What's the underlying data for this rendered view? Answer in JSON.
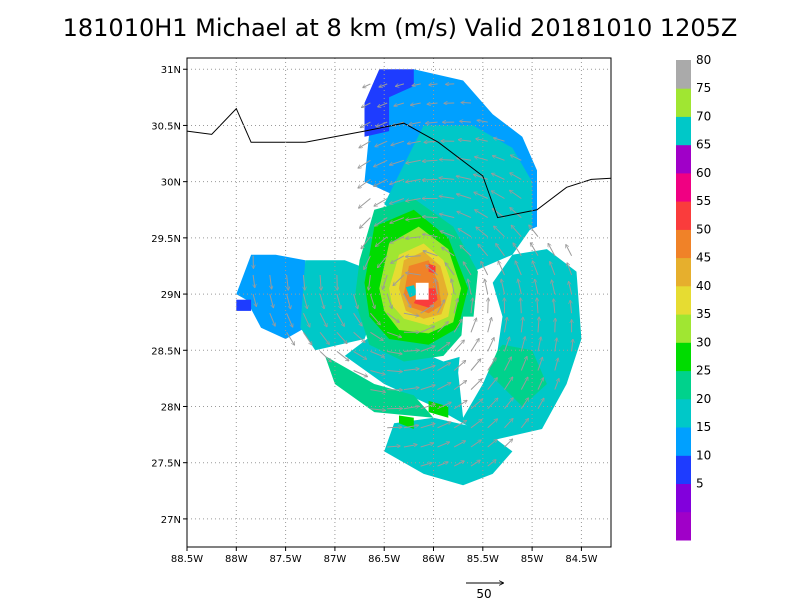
{
  "title": "181010H1 Michael at 8 km (m/s) Valid 20181010 1205Z",
  "colors": {
    "coast": "#000000",
    "grid": "#9a9a9a",
    "vector": "#9b9b9b"
  },
  "chart_data": {
    "type": "heatmap",
    "title": "181010H1 Michael at 8 km (m/s) Valid 20181010 1205Z",
    "xlabel": "",
    "ylabel": "",
    "xlim": [
      -88.5,
      -84.2
    ],
    "ylim": [
      26.75,
      31.1
    ],
    "x_ticks": [
      {
        "value": -88.5,
        "label": "88.5W"
      },
      {
        "value": -88,
        "label": "88W"
      },
      {
        "value": -87.5,
        "label": "87.5W"
      },
      {
        "value": -87,
        "label": "87W"
      },
      {
        "value": -86.5,
        "label": "86.5W"
      },
      {
        "value": -86,
        "label": "86W"
      },
      {
        "value": -85.5,
        "label": "85.5W"
      },
      {
        "value": -85,
        "label": "85W"
      },
      {
        "value": -84.5,
        "label": "84.5W"
      }
    ],
    "y_ticks": [
      {
        "value": 27,
        "label": "27N"
      },
      {
        "value": 27.5,
        "label": "27.5N"
      },
      {
        "value": 28,
        "label": "28N"
      },
      {
        "value": 28.5,
        "label": "28.5N"
      },
      {
        "value": 29,
        "label": "29N"
      },
      {
        "value": 29.5,
        "label": "29.5N"
      },
      {
        "value": 30,
        "label": "30N"
      },
      {
        "value": 30.5,
        "label": "30.5N"
      },
      {
        "value": 31,
        "label": "31N"
      }
    ],
    "grid": true,
    "storm_center": {
      "lon": -86.2,
      "lat": 29.02
    },
    "colorbar": {
      "placement": "right",
      "levels": [
        {
          "label": "",
          "color": "#a000c8"
        },
        {
          "label": "5",
          "color": "#8200dc"
        },
        {
          "label": "10",
          "color": "#1e3cff"
        },
        {
          "label": "15",
          "color": "#00a0ff"
        },
        {
          "label": "20",
          "color": "#00c8c8"
        },
        {
          "label": "25",
          "color": "#00d28c"
        },
        {
          "label": "30",
          "color": "#00dc00"
        },
        {
          "label": "35",
          "color": "#a0e632"
        },
        {
          "label": "40",
          "color": "#e6dc32"
        },
        {
          "label": "45",
          "color": "#e6af2d"
        },
        {
          "label": "50",
          "color": "#f08228"
        },
        {
          "label": "55",
          "color": "#fa3c3c"
        },
        {
          "label": "60",
          "color": "#f00082"
        },
        {
          "label": "65",
          "color": "#a000c8"
        },
        {
          "label": "70",
          "color": "#00c8c8"
        },
        {
          "label": "75",
          "color": "#a0e632"
        },
        {
          "label": "80",
          "color": "#aaaaaa"
        }
      ]
    },
    "wind_regions": [
      {
        "level": 20,
        "color": "#00a0ff",
        "polygon": [
          [
            -86.7,
            30.0
          ],
          [
            -86.6,
            30.9
          ],
          [
            -86.2,
            31.0
          ],
          [
            -85.7,
            30.9
          ],
          [
            -85.4,
            30.6
          ],
          [
            -85.1,
            30.4
          ],
          [
            -84.95,
            30.1
          ],
          [
            -84.95,
            29.6
          ],
          [
            -85.2,
            29.5
          ],
          [
            -85.7,
            29.6
          ],
          [
            -86.2,
            29.8
          ]
        ]
      },
      {
        "level": 20,
        "color": "#00a0ff",
        "polygon": [
          [
            -87.85,
            29.35
          ],
          [
            -87.6,
            29.35
          ],
          [
            -87.3,
            29.3
          ],
          [
            -87.3,
            28.7
          ],
          [
            -87.5,
            28.6
          ],
          [
            -87.75,
            28.7
          ],
          [
            -87.9,
            28.95
          ],
          [
            -88.0,
            29.0
          ]
        ]
      },
      {
        "level": 15,
        "color": "#1e3cff",
        "polygon": [
          [
            -86.7,
            30.4
          ],
          [
            -86.7,
            30.7
          ],
          [
            -86.55,
            31.0
          ],
          [
            -86.2,
            31.0
          ],
          [
            -86.2,
            30.85
          ],
          [
            -86.45,
            30.75
          ],
          [
            -86.45,
            30.45
          ]
        ]
      },
      {
        "level": 15,
        "color": "#1e3cff",
        "polygon": [
          [
            -88.0,
            28.85
          ],
          [
            -87.85,
            28.85
          ],
          [
            -87.85,
            28.95
          ],
          [
            -88.0,
            28.95
          ]
        ]
      },
      {
        "level": 25,
        "color": "#00c8c8",
        "polygon": [
          [
            -86.5,
            29.8
          ],
          [
            -86.1,
            30.5
          ],
          [
            -85.6,
            30.5
          ],
          [
            -85.2,
            30.3
          ],
          [
            -85.0,
            30.0
          ],
          [
            -85.0,
            29.6
          ],
          [
            -85.2,
            29.35
          ],
          [
            -85.6,
            29.2
          ],
          [
            -86.0,
            29.45
          ]
        ]
      },
      {
        "level": 25,
        "color": "#00c8c8",
        "polygon": [
          [
            -87.3,
            29.3
          ],
          [
            -86.9,
            29.3
          ],
          [
            -86.6,
            29.2
          ],
          [
            -86.55,
            28.95
          ],
          [
            -86.7,
            28.6
          ],
          [
            -87.2,
            28.5
          ],
          [
            -87.35,
            28.7
          ]
        ]
      },
      {
        "level": 25,
        "color": "#00c8c8",
        "polygon": [
          [
            -86.9,
            28.45
          ],
          [
            -86.5,
            28.2
          ],
          [
            -86.0,
            28.0
          ],
          [
            -85.4,
            27.7
          ],
          [
            -84.9,
            27.8
          ],
          [
            -84.65,
            28.2
          ],
          [
            -84.5,
            28.6
          ],
          [
            -84.55,
            29.2
          ],
          [
            -84.85,
            29.4
          ],
          [
            -85.2,
            29.35
          ],
          [
            -85.4,
            29.1
          ],
          [
            -85.3,
            28.8
          ],
          [
            -85.5,
            28.5
          ],
          [
            -85.9,
            28.4
          ],
          [
            -86.3,
            28.55
          ],
          [
            -86.6,
            28.65
          ]
        ]
      },
      {
        "level": 25,
        "color": "#00c8c8",
        "polygon": [
          [
            -86.5,
            27.6
          ],
          [
            -86.1,
            27.4
          ],
          [
            -85.7,
            27.3
          ],
          [
            -85.4,
            27.4
          ],
          [
            -85.2,
            27.6
          ],
          [
            -85.5,
            27.8
          ],
          [
            -86.0,
            27.9
          ],
          [
            -86.4,
            27.85
          ]
        ]
      },
      {
        "level": 30,
        "color": "#00d28c",
        "polygon": [
          [
            -86.75,
            29.3
          ],
          [
            -86.6,
            29.75
          ],
          [
            -86.2,
            29.85
          ],
          [
            -85.8,
            29.6
          ],
          [
            -85.55,
            29.2
          ],
          [
            -85.6,
            28.75
          ],
          [
            -85.9,
            28.45
          ],
          [
            -86.3,
            28.4
          ],
          [
            -86.65,
            28.55
          ],
          [
            -86.8,
            28.95
          ]
        ]
      },
      {
        "level": 30,
        "color": "#00d28c",
        "polygon": [
          [
            -87.1,
            28.45
          ],
          [
            -86.6,
            28.2
          ],
          [
            -86.2,
            28.1
          ],
          [
            -86.0,
            27.9
          ],
          [
            -86.6,
            27.95
          ],
          [
            -87.0,
            28.2
          ]
        ]
      },
      {
        "level": 30,
        "color": "#00d28c",
        "polygon": [
          [
            -85.5,
            28.35
          ],
          [
            -85.1,
            28.0
          ],
          [
            -84.85,
            28.2
          ],
          [
            -85.0,
            28.5
          ],
          [
            -85.3,
            28.55
          ]
        ]
      },
      {
        "level": 35,
        "color": "#00dc00",
        "polygon": [
          [
            -86.7,
            29.1
          ],
          [
            -86.6,
            29.6
          ],
          [
            -86.2,
            29.75
          ],
          [
            -85.85,
            29.5
          ],
          [
            -85.65,
            29.05
          ],
          [
            -85.75,
            28.7
          ],
          [
            -86.05,
            28.55
          ],
          [
            -86.45,
            28.6
          ],
          [
            -86.65,
            28.8
          ]
        ]
      },
      {
        "level": 35,
        "color": "#00dc00",
        "polygon": [
          [
            -86.05,
            27.95
          ],
          [
            -85.85,
            27.9
          ],
          [
            -85.85,
            28.0
          ],
          [
            -86.05,
            28.05
          ]
        ]
      },
      {
        "level": 35,
        "color": "#00dc00",
        "polygon": [
          [
            -86.35,
            27.85
          ],
          [
            -86.2,
            27.8
          ],
          [
            -86.2,
            27.9
          ],
          [
            -86.35,
            27.92
          ]
        ]
      },
      {
        "level": 40,
        "color": "#a0e632",
        "polygon": [
          [
            -86.55,
            29.05
          ],
          [
            -86.45,
            29.45
          ],
          [
            -86.15,
            29.6
          ],
          [
            -85.85,
            29.4
          ],
          [
            -85.72,
            29.05
          ],
          [
            -85.8,
            28.75
          ],
          [
            -86.05,
            28.65
          ],
          [
            -86.35,
            28.68
          ],
          [
            -86.5,
            28.85
          ]
        ]
      },
      {
        "level": 45,
        "color": "#e6dc32",
        "polygon": [
          [
            -86.45,
            29.05
          ],
          [
            -86.35,
            29.35
          ],
          [
            -86.1,
            29.45
          ],
          [
            -85.9,
            29.3
          ],
          [
            -85.8,
            29.05
          ],
          [
            -85.85,
            28.8
          ],
          [
            -86.05,
            28.72
          ],
          [
            -86.3,
            28.78
          ],
          [
            -86.42,
            28.9
          ]
        ]
      },
      {
        "level": 50,
        "color": "#e6af2d",
        "polygon": [
          [
            -86.35,
            29.05
          ],
          [
            -86.3,
            29.3
          ],
          [
            -86.1,
            29.38
          ],
          [
            -85.93,
            29.25
          ],
          [
            -85.85,
            29.0
          ],
          [
            -85.92,
            28.82
          ],
          [
            -86.1,
            28.78
          ],
          [
            -86.28,
            28.85
          ]
        ]
      },
      {
        "level": 55,
        "color": "#f08228",
        "polygon": [
          [
            -86.3,
            29.0
          ],
          [
            -86.25,
            29.25
          ],
          [
            -86.05,
            29.3
          ],
          [
            -85.95,
            29.1
          ],
          [
            -85.92,
            28.9
          ],
          [
            -86.05,
            28.83
          ],
          [
            -86.22,
            28.88
          ]
        ]
      },
      {
        "level": 60,
        "color": "#fa3c3c",
        "polygon": [
          [
            -86.2,
            28.92
          ],
          [
            -86.05,
            28.88
          ],
          [
            -85.96,
            28.95
          ],
          [
            -85.98,
            29.05
          ],
          [
            -86.12,
            29.05
          ]
        ]
      },
      {
        "level": 60,
        "color": "#fa3c3c",
        "polygon": [
          [
            -86.05,
            29.2
          ],
          [
            -85.98,
            29.18
          ],
          [
            -85.98,
            29.25
          ],
          [
            -86.05,
            29.27
          ]
        ]
      },
      {
        "level": 25,
        "color": "#00c8c8",
        "polygon": [
          [
            -86.28,
            29.06
          ],
          [
            -86.2,
            29.08
          ],
          [
            -86.16,
            29.0
          ],
          [
            -86.24,
            28.97
          ]
        ]
      }
    ],
    "no_data_regions": [
      {
        "polygon": [
          [
            -86.18,
            29.1
          ],
          [
            -86.05,
            29.1
          ],
          [
            -86.05,
            28.95
          ],
          [
            -86.18,
            28.95
          ]
        ]
      },
      {
        "polygon": [
          [
            -85.7,
            28.8
          ],
          [
            -85.3,
            28.8
          ],
          [
            -85.35,
            28.5
          ],
          [
            -85.5,
            28.2
          ],
          [
            -85.7,
            27.9
          ],
          [
            -85.75,
            28.3
          ]
        ]
      }
    ],
    "coastline": [
      [
        -88.5,
        30.45
      ],
      [
        -88.25,
        30.42
      ],
      [
        -88.0,
        30.65
      ],
      [
        -87.85,
        30.35
      ],
      [
        -87.3,
        30.35
      ],
      [
        -86.7,
        30.45
      ],
      [
        -86.3,
        30.52
      ],
      [
        -85.95,
        30.35
      ],
      [
        -85.5,
        30.05
      ],
      [
        -85.35,
        29.68
      ],
      [
        -84.95,
        29.75
      ],
      [
        -84.65,
        29.95
      ],
      [
        -84.4,
        30.02
      ],
      [
        -84.2,
        30.03
      ]
    ],
    "vector_field": {
      "lon_range": [
        -88.0,
        -84.5
      ],
      "lat_range": [
        27.3,
        30.95
      ],
      "step": 0.17,
      "mask": [
        [
          -86.7,
          29.0
        ],
        [
          -86.7,
          30.9
        ],
        [
          -86.2,
          31.0
        ],
        [
          -85.7,
          30.9
        ],
        [
          -85.4,
          30.6
        ],
        [
          -85.0,
          30.2
        ],
        [
          -84.95,
          29.6
        ],
        [
          -84.55,
          29.35
        ],
        [
          -84.5,
          28.6
        ],
        [
          -84.7,
          28.1
        ],
        [
          -85.1,
          27.7
        ],
        [
          -85.5,
          27.35
        ],
        [
          -86.1,
          27.35
        ],
        [
          -86.5,
          27.6
        ],
        [
          -86.9,
          28.4
        ],
        [
          -87.3,
          28.5
        ],
        [
          -87.6,
          28.6
        ],
        [
          -87.9,
          28.95
        ],
        [
          -87.85,
          29.35
        ],
        [
          -87.3,
          29.3
        ],
        [
          -86.9,
          29.3
        ]
      ]
    },
    "reference_vector": {
      "label": "50",
      "speed": 50
    }
  }
}
